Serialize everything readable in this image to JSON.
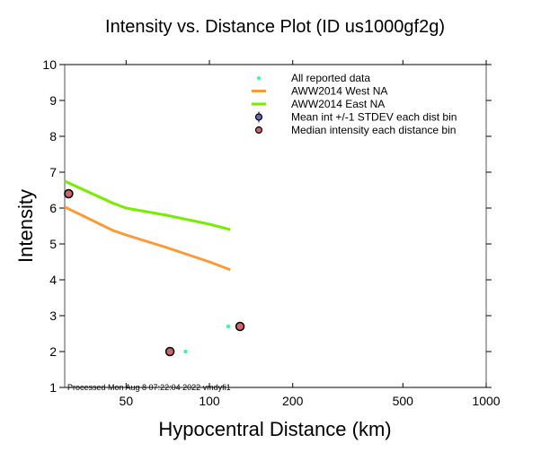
{
  "chart_data": {
    "type": "scatter",
    "title": "Intensity vs. Distance Plot (ID us1000gf2g)",
    "xlabel": "Hypocentral Distance (km)",
    "ylabel": "Intensity",
    "xscale": "log",
    "xlim": [
      30,
      1000
    ],
    "ylim": [
      1,
      10
    ],
    "xticks": [
      50,
      100,
      200,
      500,
      1000
    ],
    "xtick_labels": [
      "50",
      "100",
      "200",
      "500",
      "1000"
    ],
    "yticks": [
      1,
      2,
      3,
      4,
      5,
      6,
      7,
      8,
      9,
      10
    ],
    "ytick_labels": [
      "1",
      "2",
      "3",
      "4",
      "5",
      "6",
      "7",
      "8",
      "9",
      "10"
    ],
    "grid": false,
    "legend_position": "top-right",
    "footer": "Processed Mon Aug  8 07:22:04 2022 vmdyfi1",
    "series": [
      {
        "name": "All reported data",
        "kind": "points",
        "color": "#33ff99",
        "x": [
          82,
          117
        ],
        "y": [
          2.0,
          2.7
        ]
      },
      {
        "name": "AWW2014 West NA",
        "kind": "line",
        "color": "#ff9933",
        "x": [
          30,
          45,
          50,
          70,
          100,
          119
        ],
        "y": [
          6.03,
          5.37,
          5.25,
          4.9,
          4.5,
          4.28
        ]
      },
      {
        "name": "AWW2014 East NA",
        "kind": "line",
        "color": "#77ee00",
        "x": [
          30,
          45,
          50,
          70,
          100,
          119
        ],
        "y": [
          6.75,
          6.13,
          6.0,
          5.8,
          5.55,
          5.4
        ]
      },
      {
        "name": "Mean int +/-1 STDEV each dist bin",
        "kind": "errorbar",
        "color": "#6666bb",
        "x": [],
        "y": []
      },
      {
        "name": "Median intensity each distance bin",
        "kind": "points",
        "color": "#cc6666",
        "x": [
          31,
          72,
          129
        ],
        "y": [
          6.4,
          2.0,
          2.7
        ]
      }
    ]
  }
}
